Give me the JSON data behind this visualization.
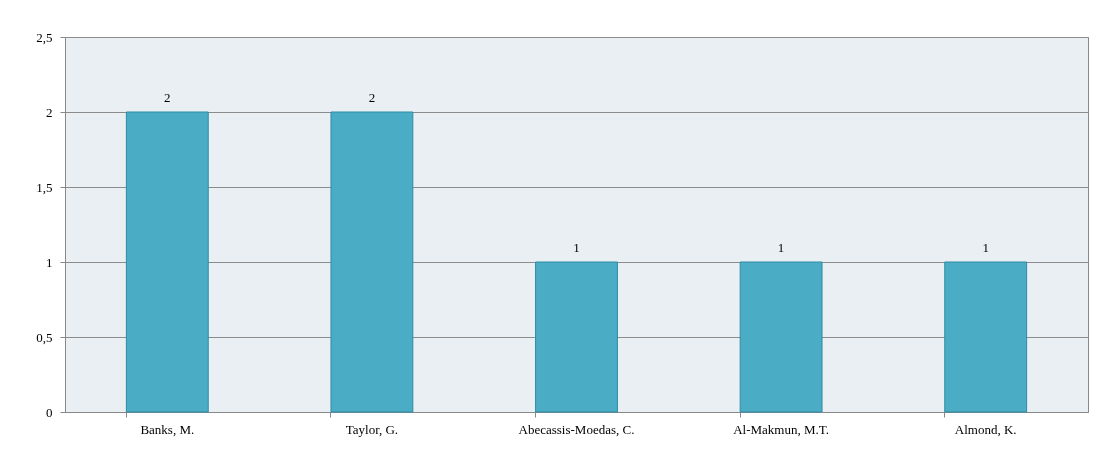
{
  "chart_data": {
    "type": "bar",
    "categories": [
      "Banks, M.",
      "Taylor, G.",
      "Abecassis-Moedas, C.",
      "Al-Makmun, M.T.",
      "Almond, K."
    ],
    "values": [
      2,
      2,
      1,
      1,
      1
    ],
    "color": "#4bacc6",
    "ylim": [
      0,
      2.5
    ],
    "yticks": [
      0,
      {
        "value": 0.5,
        "label": "0,5"
      },
      1,
      {
        "value": 1.5,
        "label": "1,5"
      },
      2,
      {
        "value": 2.5,
        "label": "2,5"
      }
    ],
    "grid": "y",
    "data_labels": true
  }
}
